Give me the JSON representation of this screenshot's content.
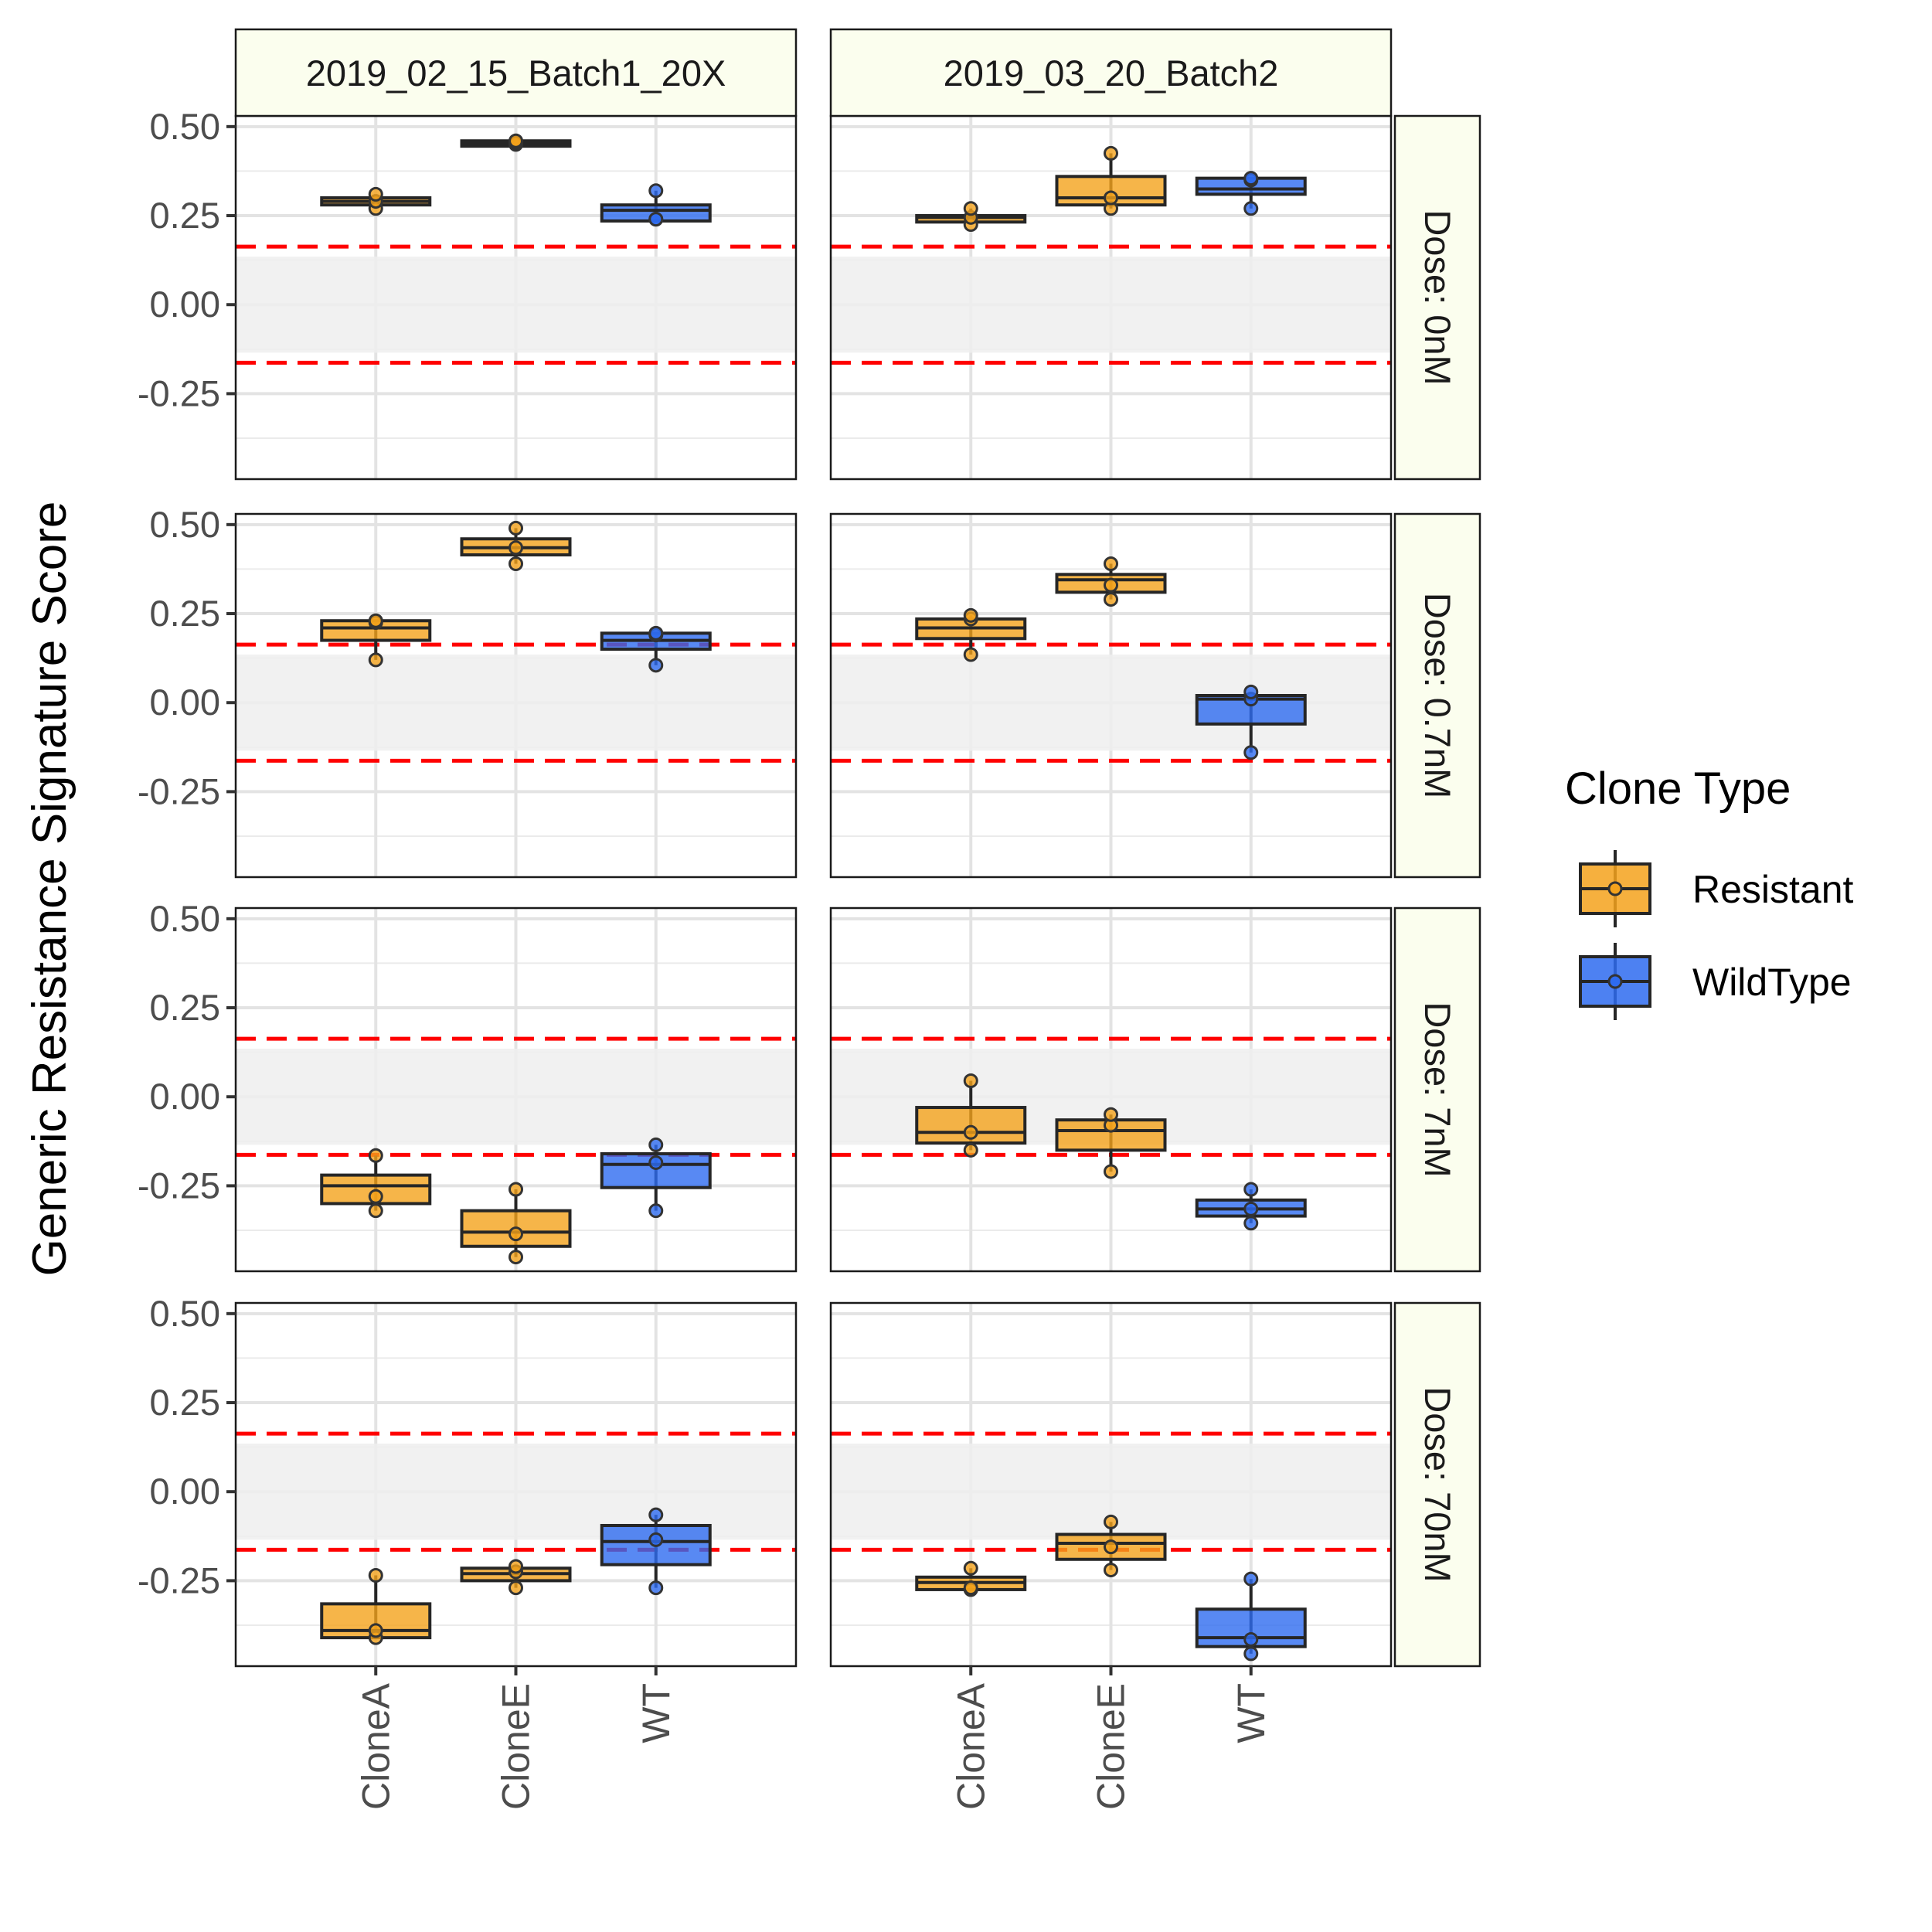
{
  "chart_data": {
    "type": "box",
    "ylabel": "Generic Resistance Signature Score",
    "xlabel": "",
    "categories": [
      "CloneA",
      "CloneE",
      "WT"
    ],
    "y_ticks": [
      "0.50",
      "0.25",
      "0.00",
      "-0.25"
    ],
    "ylim": [
      -0.49,
      0.53
    ],
    "grid": true,
    "threshold": {
      "upper": 0.163,
      "lower": -0.163,
      "band": [
        -0.135,
        0.135
      ],
      "line_color": "#ff0000",
      "band_color": "#efefef"
    },
    "facet_columns": [
      "2019_02_15_Batch1_20X",
      "2019_03_20_Batch2"
    ],
    "facet_rows": [
      "Dose: 0nM",
      "Dose: 0.7nM",
      "Dose: 7nM",
      "Dose: 70nM"
    ],
    "legend": {
      "title": "Clone Type",
      "position": "right",
      "items": [
        {
          "label": "Resistant",
          "color": "#F4A21C"
        },
        {
          "label": "WildType",
          "color": "#2E6BF0"
        }
      ]
    },
    "panels": [
      {
        "row": 0,
        "col": 0,
        "boxes": [
          {
            "category": "CloneA",
            "type": "Resistant",
            "q1": 0.28,
            "median": 0.29,
            "q3": 0.3,
            "min": 0.27,
            "max": 0.31,
            "points": [
              0.27,
              0.29,
              0.31
            ]
          },
          {
            "category": "CloneE",
            "type": "Resistant",
            "q1": 0.445,
            "median": 0.452,
            "q3": 0.46,
            "min": 0.445,
            "max": 0.46,
            "points": [
              0.45,
              0.455,
              0.46
            ]
          },
          {
            "category": "WT",
            "type": "WildType",
            "q1": 0.235,
            "median": 0.265,
            "q3": 0.28,
            "min": 0.235,
            "max": 0.32,
            "points": [
              0.24,
              0.24,
              0.32
            ]
          }
        ]
      },
      {
        "row": 0,
        "col": 1,
        "boxes": [
          {
            "category": "CloneA",
            "type": "Resistant",
            "q1": 0.232,
            "median": 0.245,
            "q3": 0.25,
            "min": 0.225,
            "max": 0.27,
            "points": [
              0.225,
              0.245,
              0.27
            ]
          },
          {
            "category": "CloneE",
            "type": "Resistant",
            "q1": 0.28,
            "median": 0.3,
            "q3": 0.36,
            "min": 0.27,
            "max": 0.425,
            "points": [
              0.27,
              0.3,
              0.425
            ]
          },
          {
            "category": "WT",
            "type": "WildType",
            "q1": 0.31,
            "median": 0.325,
            "q3": 0.355,
            "min": 0.27,
            "max": 0.355,
            "points": [
              0.27,
              0.35,
              0.355
            ]
          }
        ]
      },
      {
        "row": 1,
        "col": 0,
        "boxes": [
          {
            "category": "CloneA",
            "type": "Resistant",
            "q1": 0.175,
            "median": 0.21,
            "q3": 0.23,
            "min": 0.12,
            "max": 0.23,
            "points": [
              0.12,
              0.225,
              0.23
            ]
          },
          {
            "category": "CloneE",
            "type": "Resistant",
            "q1": 0.415,
            "median": 0.435,
            "q3": 0.46,
            "min": 0.39,
            "max": 0.49,
            "points": [
              0.39,
              0.435,
              0.49
            ]
          },
          {
            "category": "WT",
            "type": "WildType",
            "q1": 0.15,
            "median": 0.175,
            "q3": 0.195,
            "min": 0.105,
            "max": 0.195,
            "points": [
              0.105,
              0.19,
              0.195
            ]
          }
        ]
      },
      {
        "row": 1,
        "col": 1,
        "boxes": [
          {
            "category": "CloneA",
            "type": "Resistant",
            "q1": 0.18,
            "median": 0.21,
            "q3": 0.235,
            "min": 0.135,
            "max": 0.245,
            "points": [
              0.135,
              0.235,
              0.245
            ]
          },
          {
            "category": "CloneE",
            "type": "Resistant",
            "q1": 0.31,
            "median": 0.345,
            "q3": 0.36,
            "min": 0.29,
            "max": 0.39,
            "points": [
              0.29,
              0.33,
              0.39
            ]
          },
          {
            "category": "WT",
            "type": "WildType",
            "q1": -0.06,
            "median": 0.01,
            "q3": 0.02,
            "min": -0.14,
            "max": 0.03,
            "points": [
              -0.14,
              0.01,
              0.03
            ]
          }
        ]
      },
      {
        "row": 2,
        "col": 0,
        "boxes": [
          {
            "category": "CloneA",
            "type": "Resistant",
            "q1": -0.3,
            "median": -0.25,
            "q3": -0.22,
            "min": -0.32,
            "max": -0.165,
            "points": [
              -0.32,
              -0.28,
              -0.165
            ]
          },
          {
            "category": "CloneE",
            "type": "Resistant",
            "q1": -0.42,
            "median": -0.38,
            "q3": -0.32,
            "min": -0.45,
            "max": -0.26,
            "points": [
              -0.45,
              -0.385,
              -0.26
            ]
          },
          {
            "category": "WT",
            "type": "WildType",
            "q1": -0.255,
            "median": -0.19,
            "q3": -0.16,
            "min": -0.32,
            "max": -0.135,
            "points": [
              -0.32,
              -0.185,
              -0.135
            ]
          }
        ]
      },
      {
        "row": 2,
        "col": 1,
        "boxes": [
          {
            "category": "CloneA",
            "type": "Resistant",
            "q1": -0.13,
            "median": -0.1,
            "q3": -0.03,
            "min": -0.15,
            "max": 0.045,
            "points": [
              -0.15,
              -0.1,
              0.045
            ]
          },
          {
            "category": "CloneE",
            "type": "Resistant",
            "q1": -0.15,
            "median": -0.095,
            "q3": -0.065,
            "min": -0.21,
            "max": -0.05,
            "points": [
              -0.21,
              -0.08,
              -0.05
            ]
          },
          {
            "category": "WT",
            "type": "WildType",
            "q1": -0.335,
            "median": -0.315,
            "q3": -0.29,
            "min": -0.355,
            "max": -0.26,
            "points": [
              -0.355,
              -0.315,
              -0.26
            ]
          }
        ]
      },
      {
        "row": 3,
        "col": 0,
        "boxes": [
          {
            "category": "CloneA",
            "type": "Resistant",
            "q1": -0.41,
            "median": -0.39,
            "q3": -0.315,
            "min": -0.41,
            "max": -0.235,
            "points": [
              -0.41,
              -0.39,
              -0.235
            ]
          },
          {
            "category": "CloneE",
            "type": "Resistant",
            "q1": -0.25,
            "median": -0.23,
            "q3": -0.215,
            "min": -0.27,
            "max": -0.205,
            "points": [
              -0.27,
              -0.225,
              -0.21
            ]
          },
          {
            "category": "WT",
            "type": "WildType",
            "q1": -0.205,
            "median": -0.14,
            "q3": -0.095,
            "min": -0.27,
            "max": -0.065,
            "points": [
              -0.27,
              -0.135,
              -0.065
            ]
          }
        ]
      },
      {
        "row": 3,
        "col": 1,
        "boxes": [
          {
            "category": "CloneA",
            "type": "Resistant",
            "q1": -0.275,
            "median": -0.255,
            "q3": -0.24,
            "min": -0.275,
            "max": -0.215,
            "points": [
              -0.275,
              -0.27,
              -0.215
            ]
          },
          {
            "category": "CloneE",
            "type": "Resistant",
            "q1": -0.19,
            "median": -0.145,
            "q3": -0.12,
            "min": -0.22,
            "max": -0.085,
            "points": [
              -0.22,
              -0.155,
              -0.085
            ]
          },
          {
            "category": "WT",
            "type": "WildType",
            "q1": -0.435,
            "median": -0.41,
            "q3": -0.33,
            "min": -0.455,
            "max": -0.245,
            "points": [
              -0.455,
              -0.415,
              -0.245
            ]
          }
        ]
      }
    ]
  }
}
